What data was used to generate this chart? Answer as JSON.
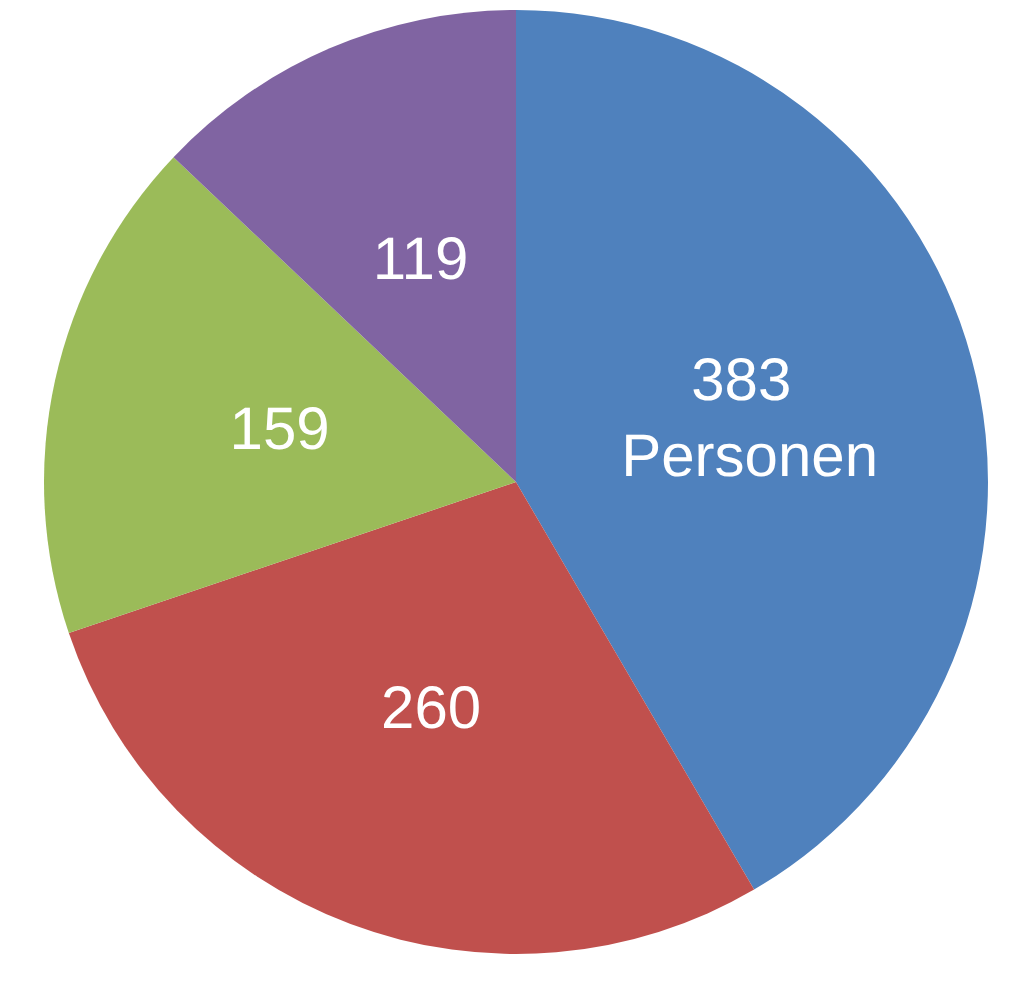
{
  "chart_data": {
    "type": "pie",
    "categories": [
      null,
      null,
      null,
      null
    ],
    "values": [
      383,
      260,
      159,
      119
    ],
    "colors": [
      "#4f81bd",
      "#c0504d",
      "#9bbb59",
      "#8064a2"
    ],
    "value_labels": [
      "383 Personen",
      "260",
      "159",
      "119"
    ]
  }
}
